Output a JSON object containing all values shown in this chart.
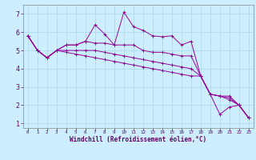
{
  "title": "",
  "xlabel": "Windchill (Refroidissement éolien,°C)",
  "bg_color": "#cceeff",
  "line_color": "#990099",
  "grid_color": "#aaddee",
  "x_values": [
    0,
    1,
    2,
    3,
    4,
    5,
    6,
    7,
    8,
    9,
    10,
    11,
    12,
    13,
    14,
    15,
    16,
    17,
    18,
    19,
    20,
    21,
    22,
    23
  ],
  "series1": [
    5.8,
    5.0,
    4.6,
    5.0,
    5.3,
    5.3,
    5.5,
    6.4,
    5.9,
    5.3,
    7.1,
    6.3,
    6.1,
    5.8,
    5.75,
    5.8,
    5.3,
    5.5,
    3.6,
    2.6,
    1.5,
    1.9,
    2.0,
    1.3
  ],
  "series2": [
    5.8,
    5.0,
    4.6,
    5.0,
    5.3,
    5.3,
    5.5,
    5.4,
    5.4,
    5.3,
    5.3,
    5.3,
    5.0,
    4.9,
    4.9,
    4.8,
    4.7,
    4.7,
    3.6,
    2.6,
    2.5,
    2.5,
    2.0,
    1.3
  ],
  "series3": [
    5.8,
    5.0,
    4.6,
    5.0,
    5.0,
    5.0,
    5.0,
    5.0,
    4.9,
    4.8,
    4.7,
    4.6,
    4.5,
    4.4,
    4.3,
    4.2,
    4.1,
    4.0,
    3.6,
    2.6,
    2.5,
    2.4,
    2.0,
    1.3
  ],
  "series4": [
    5.8,
    5.0,
    4.6,
    5.0,
    4.9,
    4.8,
    4.7,
    4.6,
    4.5,
    4.4,
    4.3,
    4.2,
    4.1,
    4.0,
    3.9,
    3.8,
    3.7,
    3.6,
    3.6,
    2.6,
    2.5,
    2.3,
    2.0,
    1.3
  ],
  "ylim": [
    0.75,
    7.5
  ],
  "xlim": [
    -0.5,
    23.5
  ],
  "yticks": [
    1,
    2,
    3,
    4,
    5,
    6,
    7
  ],
  "xticks": [
    0,
    1,
    2,
    3,
    4,
    5,
    6,
    7,
    8,
    9,
    10,
    11,
    12,
    13,
    14,
    15,
    16,
    17,
    18,
    19,
    20,
    21,
    22,
    23
  ],
  "xlabel_fontsize": 5.5,
  "ytick_fontsize": 6,
  "xtick_fontsize": 4.2
}
